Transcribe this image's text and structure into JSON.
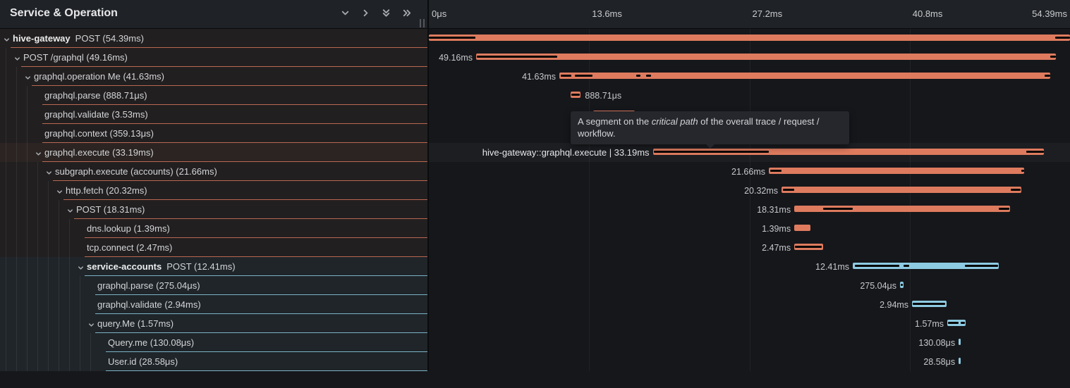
{
  "header": {
    "title": "Service & Operation",
    "controls": [
      {
        "icon": "chevron-down-icon",
        "name": "collapse-one-button"
      },
      {
        "icon": "chevron-right-icon",
        "name": "expand-one-button"
      },
      {
        "icon": "double-chevron-down-icon",
        "name": "collapse-all-button"
      },
      {
        "icon": "double-chevron-right-icon",
        "name": "expand-all-button"
      }
    ],
    "axis": {
      "ticks": [
        {
          "label": "0μs",
          "pos": 0
        },
        {
          "label": "13.6ms",
          "pos": 0.25
        },
        {
          "label": "27.2ms",
          "pos": 0.5
        },
        {
          "label": "40.8ms",
          "pos": 0.75
        },
        {
          "label": "54.39ms",
          "pos": 1
        }
      ]
    }
  },
  "tooltip": {
    "prefix": "A segment on the ",
    "emphasis": "critical path",
    "suffix": " of the overall trace / request / workflow."
  },
  "colors": {
    "hive-gateway": "#DE7B5E",
    "service-accounts": "#8DCBE2",
    "critical": "#050505",
    "border-hive-gateway": "rgba(222,123,94,0.8)",
    "border-service-accounts": "rgba(141,203,226,0.85)"
  },
  "timeline": {
    "total_ms": 54.39
  },
  "spans": [
    {
      "service": "hive-gateway",
      "label": "POST (54.39ms)",
      "depth": 0,
      "expandable": true,
      "color": "hive-gateway",
      "start_ms": 0,
      "dur_ms": 54.39,
      "critical": [
        [
          0,
          3.95
        ],
        [
          53.13,
          54.39
        ]
      ],
      "bar_label": null,
      "label_side": "left"
    },
    {
      "label": "POST /graphql (49.16ms)",
      "depth": 1,
      "expandable": true,
      "color": "hive-gateway",
      "start_ms": 4.01,
      "dur_ms": 49.16,
      "critical": [
        [
          4.07,
          10.89
        ],
        [
          52.72,
          53.17
        ]
      ],
      "bar_label": "49.16ms",
      "label_side": "left"
    },
    {
      "label": "graphql.operation Me (41.63ms)",
      "depth": 2,
      "expandable": true,
      "color": "hive-gateway",
      "start_ms": 11.07,
      "dur_ms": 41.63,
      "critical": [
        [
          11.19,
          12.09
        ],
        [
          12.39,
          13.88
        ],
        [
          17.59,
          17.95
        ],
        [
          18.43,
          18.85
        ],
        [
          52.24,
          52.7
        ]
      ],
      "bar_label": "41.63ms",
      "label_side": "left"
    },
    {
      "label": "graphql.parse (888.71μs)",
      "depth": 3,
      "expandable": false,
      "color": "hive-gateway",
      "start_ms": 12.0,
      "dur_ms": 0.889,
      "critical": [
        [
          12.06,
          12.83
        ]
      ],
      "bar_label": "888.71μs",
      "label_side": "right"
    },
    {
      "label": "graphql.validate (3.53ms)",
      "depth": 3,
      "expandable": false,
      "color": "hive-gateway",
      "start_ms": 13.94,
      "dur_ms": 3.53,
      "critical": [],
      "bar_label": "3.53ms",
      "label_side": "right"
    },
    {
      "label": "graphql.context (359.13μs)",
      "depth": 3,
      "expandable": false,
      "color": "hive-gateway",
      "start_ms": 17.5,
      "dur_ms": 0.359,
      "critical": [],
      "bar_label": "359.13μs",
      "label_side": "right"
    },
    {
      "label": "graphql.execute (33.19ms)",
      "depth": 3,
      "expandable": true,
      "color": "hive-gateway",
      "hovered": true,
      "start_ms": 19.0,
      "dur_ms": 33.19,
      "critical": [
        [
          19.06,
          28.84
        ],
        [
          50.68,
          52.19
        ]
      ],
      "bar_label": "hive-gateway::graphql.execute | 33.19ms",
      "label_side": "left",
      "label_bright": true
    },
    {
      "label": "subgraph.execute (accounts) (21.66ms)",
      "depth": 4,
      "expandable": true,
      "color": "hive-gateway",
      "start_ms": 28.84,
      "dur_ms": 21.66,
      "critical": [
        [
          28.96,
          29.92
        ],
        [
          50.26,
          50.5
        ]
      ],
      "bar_label": "21.66ms",
      "label_side": "left"
    },
    {
      "label": "http.fetch (20.32ms)",
      "depth": 5,
      "expandable": true,
      "color": "hive-gateway",
      "start_ms": 29.92,
      "dur_ms": 20.32,
      "critical": [
        [
          30.04,
          31.0
        ],
        [
          49.36,
          50.2
        ]
      ],
      "bar_label": "20.32ms",
      "label_side": "left"
    },
    {
      "label": "POST (18.31ms)",
      "depth": 6,
      "expandable": true,
      "color": "hive-gateway",
      "start_ms": 31.0,
      "dur_ms": 18.31,
      "critical": [
        [
          33.45,
          35.96
        ],
        [
          48.35,
          49.25
        ]
      ],
      "bar_label": "18.31ms",
      "label_side": "left"
    },
    {
      "label": "dns.lookup (1.39ms)",
      "depth": 7,
      "expandable": false,
      "color": "hive-gateway",
      "start_ms": 31.0,
      "dur_ms": 1.39,
      "critical": [],
      "bar_label": "1.39ms",
      "label_side": "left"
    },
    {
      "label": "tcp.connect (2.47ms)",
      "depth": 7,
      "expandable": false,
      "color": "hive-gateway",
      "start_ms": 31.0,
      "dur_ms": 2.47,
      "critical": [
        [
          31.06,
          33.33
        ]
      ],
      "bar_label": "2.47ms",
      "label_side": "left"
    },
    {
      "service": "service-accounts",
      "label": "POST (12.41ms)",
      "depth": 7,
      "expandable": true,
      "color": "service-accounts",
      "start_ms": 35.96,
      "dur_ms": 12.41,
      "critical": [
        [
          36.14,
          39.91
        ],
        [
          40.27,
          40.75
        ],
        [
          45.47,
          48.29
        ]
      ],
      "bar_label": "12.41ms",
      "label_side": "left"
    },
    {
      "label": "graphql.parse (275.04μs)",
      "depth": 8,
      "expandable": false,
      "color": "service-accounts",
      "start_ms": 39.97,
      "dur_ms": 0.275,
      "critical": [
        [
          40.03,
          40.19
        ]
      ],
      "bar_label": "275.04μs",
      "label_side": "left"
    },
    {
      "label": "graphql.validate (2.94ms)",
      "depth": 8,
      "expandable": false,
      "color": "service-accounts",
      "start_ms": 40.99,
      "dur_ms": 2.94,
      "critical": [
        [
          41.05,
          43.8
        ]
      ],
      "bar_label": "2.94ms",
      "label_side": "left"
    },
    {
      "label": "query.Me (1.57ms)",
      "depth": 8,
      "expandable": true,
      "color": "service-accounts",
      "start_ms": 43.98,
      "dur_ms": 1.57,
      "critical": [
        [
          44.04,
          44.92
        ],
        [
          45.12,
          45.49
        ]
      ],
      "bar_label": "1.57ms",
      "label_side": "left"
    },
    {
      "label": "Query.me (130.08μs)",
      "depth": 9,
      "expandable": false,
      "color": "service-accounts",
      "start_ms": 44.94,
      "dur_ms": 0.13,
      "critical": [],
      "bar_label": "130.08μs",
      "label_side": "left"
    },
    {
      "label": "User.id (28.58μs)",
      "depth": 9,
      "expandable": false,
      "color": "service-accounts",
      "start_ms": 44.94,
      "dur_ms": 0.0286,
      "critical": [],
      "bar_label": "28.58μs",
      "label_side": "left"
    }
  ]
}
